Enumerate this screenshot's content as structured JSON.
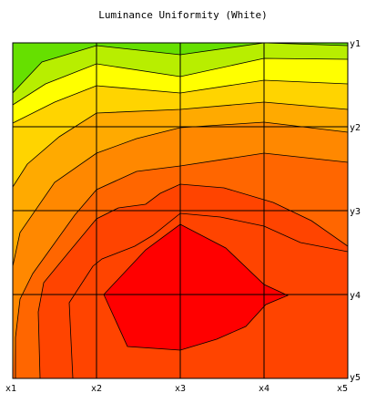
{
  "chart_data": {
    "type": "heatmap",
    "subtype": "filled-contour",
    "title": "Luminance Uniformity (White)",
    "x_ticks": [
      "x1",
      "x2",
      "x3",
      "x4",
      "x5"
    ],
    "y_ticks": [
      "y1",
      "y2",
      "y3",
      "y4",
      "y5"
    ],
    "grid": true,
    "colors": {
      "level1": "#66e000",
      "level2": "#b8ee00",
      "level3": "#ffff00",
      "level4": "#ffd400",
      "level5": "#ffaa00",
      "level6": "#ff8800",
      "level7": "#ff6600",
      "level8": "#ff4400",
      "level9": "#ff0000"
    }
  }
}
